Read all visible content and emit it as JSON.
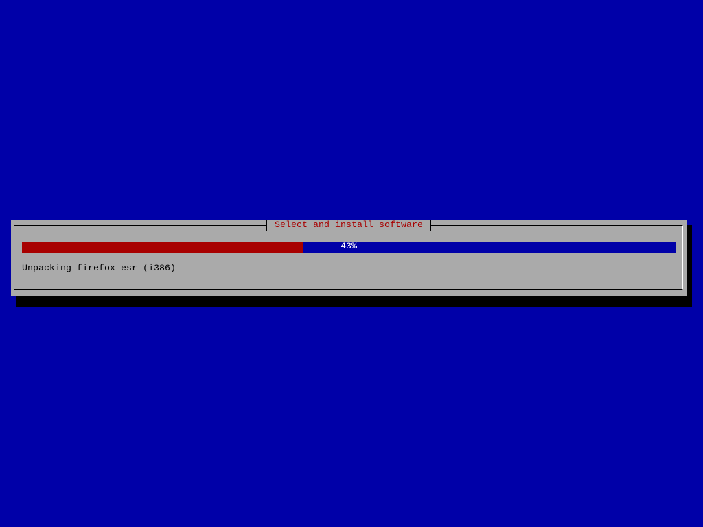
{
  "dialog": {
    "title": "Select and install software",
    "progress": {
      "percent": 43,
      "label": "43%"
    },
    "status": "Unpacking firefox-esr (i386)"
  },
  "colors": {
    "background": "#0000a8",
    "dialog": "#aaaaaa",
    "title_text": "#a80000",
    "progress_fill": "#a80000",
    "progress_track": "#0000a8"
  }
}
